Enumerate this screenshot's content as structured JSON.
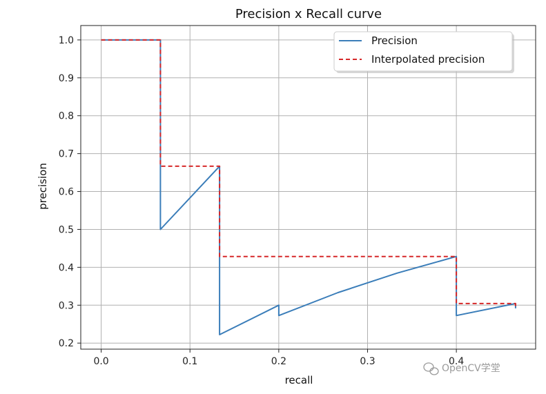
{
  "chart_data": {
    "type": "line",
    "title": "Precision x Recall curve",
    "xlabel": "recall",
    "ylabel": "precision",
    "xlim": [
      -0.023,
      0.4893
    ],
    "ylim": [
      0.184,
      1.038
    ],
    "xticks": [
      0.0,
      0.1,
      0.2,
      0.3,
      0.4
    ],
    "xtick_labels": [
      "0.0",
      "0.1",
      "0.2",
      "0.3",
      "0.4"
    ],
    "yticks": [
      0.2,
      0.3,
      0.4,
      0.5,
      0.6,
      0.7,
      0.8,
      0.9,
      1.0
    ],
    "ytick_labels": [
      "0.2",
      "0.3",
      "0.4",
      "0.5",
      "0.6",
      "0.7",
      "0.8",
      "0.9",
      "1.0"
    ],
    "grid": true,
    "legend_position": "top-right",
    "series": [
      {
        "name": "Precision",
        "color": "#3a7db9",
        "style": "solid",
        "points": [
          [
            0.0,
            1.0
          ],
          [
            0.0667,
            1.0
          ],
          [
            0.0667,
            0.5
          ],
          [
            0.1333,
            0.6667
          ],
          [
            0.1333,
            0.2222
          ],
          [
            0.2,
            0.3
          ],
          [
            0.2,
            0.2727
          ],
          [
            0.2667,
            0.3333
          ],
          [
            0.3333,
            0.3846
          ],
          [
            0.4,
            0.4286
          ],
          [
            0.4,
            0.2727
          ],
          [
            0.4667,
            0.3043
          ],
          [
            0.4667,
            0.2917
          ]
        ]
      },
      {
        "name": "Interpolated precision",
        "color": "#d62728",
        "style": "dashed",
        "points": [
          [
            0.0,
            1.0
          ],
          [
            0.0667,
            1.0
          ],
          [
            0.0667,
            0.6667
          ],
          [
            0.1333,
            0.6667
          ],
          [
            0.1333,
            0.4286
          ],
          [
            0.4,
            0.4286
          ],
          [
            0.4,
            0.3043
          ],
          [
            0.4667,
            0.3043
          ],
          [
            0.4667,
            0.2917
          ]
        ]
      }
    ]
  },
  "watermark": {
    "icon": "wechat-icon",
    "text": "OpenCV学堂"
  }
}
